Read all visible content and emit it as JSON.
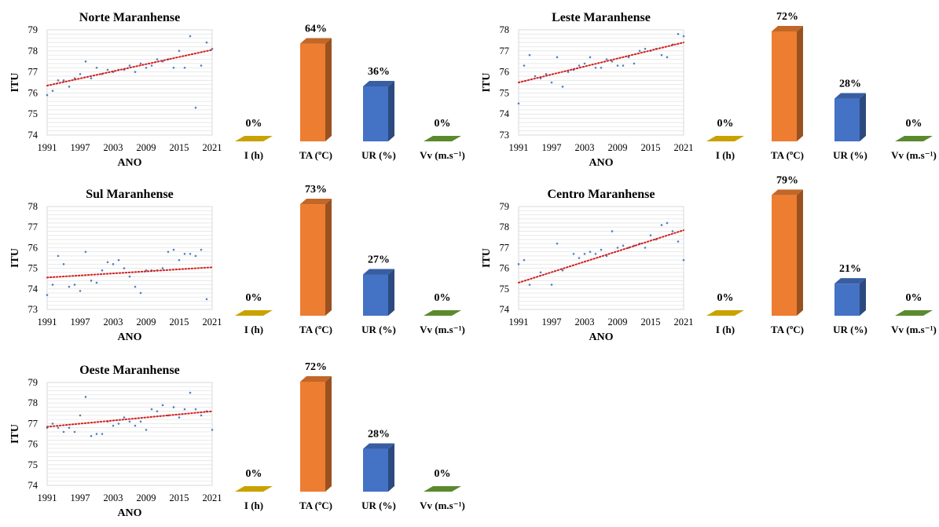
{
  "colors": {
    "I": "#C9A200",
    "TA": "#ED7D31",
    "UR": "#4472C4",
    "Vv": "#5B8A2E",
    "trend": "#D21F1F",
    "points": "#4F81BD",
    "grid": "#E4E4E4"
  },
  "chart_data": [
    {
      "type": "scatter",
      "title": "Norte Maranhense",
      "xlabel": "ANO",
      "ylabel": "ITU",
      "xlim": [
        1991,
        2021
      ],
      "ylim": [
        74,
        79
      ],
      "xticks": [
        "1991",
        "1997",
        "2003",
        "2009",
        "2015",
        "2021"
      ],
      "yticks": [
        "74",
        "75",
        "76",
        "77",
        "78",
        "79"
      ],
      "grid": true,
      "trendline": {
        "style": "dotted",
        "y_start": 76.35,
        "y_end": 78.05
      },
      "x": [
        1991,
        1992,
        1993,
        1994,
        1995,
        1996,
        1997,
        1998,
        1999,
        2000,
        2001,
        2002,
        2003,
        2004,
        2005,
        2006,
        2007,
        2008,
        2009,
        2010,
        2011,
        2012,
        2013,
        2014,
        2015,
        2016,
        2017,
        2018,
        2019,
        2020,
        2021
      ],
      "y": [
        75.9,
        76.1,
        76.6,
        76.6,
        76.3,
        76.7,
        76.9,
        77.5,
        76.7,
        77.2,
        76.9,
        77.1,
        77.0,
        77.1,
        77.1,
        77.3,
        77.0,
        77.4,
        77.2,
        77.3,
        77.6,
        77.5,
        77.6,
        77.2,
        78.0,
        77.2,
        78.7,
        75.3,
        77.3,
        78.4,
        78.1
      ]
    },
    {
      "type": "bar",
      "categories": [
        "I (h)",
        "TA (ºC)",
        "UR (%)",
        "Vv (m.s⁻¹)"
      ],
      "values": [
        0,
        64,
        36,
        0
      ],
      "data_labels": [
        "0%",
        "64%",
        "36%",
        "0%"
      ],
      "ylim": [
        0,
        64
      ]
    },
    {
      "type": "scatter",
      "title": "Leste Maranhense",
      "xlabel": "ANO",
      "ylabel": "ITU",
      "xlim": [
        1991,
        2021
      ],
      "ylim": [
        73,
        78
      ],
      "xticks": [
        "1991",
        "1997",
        "2003",
        "2009",
        "2015",
        "2021"
      ],
      "yticks": [
        "73",
        "74",
        "75",
        "76",
        "77",
        "78"
      ],
      "grid": true,
      "trendline": {
        "style": "dotted",
        "y_start": 75.5,
        "y_end": 77.4
      },
      "x": [
        1991,
        1992,
        1993,
        1994,
        1995,
        1996,
        1997,
        1998,
        1999,
        2000,
        2001,
        2002,
        2003,
        2004,
        2005,
        2006,
        2007,
        2008,
        2009,
        2010,
        2011,
        2012,
        2013,
        2014,
        2015,
        2016,
        2017,
        2018,
        2019,
        2020,
        2021
      ],
      "y": [
        74.5,
        76.3,
        76.8,
        75.8,
        75.7,
        75.9,
        75.5,
        76.7,
        75.3,
        76.0,
        76.1,
        76.3,
        76.4,
        76.7,
        76.2,
        76.2,
        76.6,
        76.5,
        76.3,
        76.3,
        76.7,
        76.4,
        77.0,
        77.1,
        77.0,
        77.1,
        76.8,
        76.7,
        77.3,
        77.8,
        77.7
      ]
    },
    {
      "type": "bar",
      "categories": [
        "I (h)",
        "TA (ºC)",
        "UR (%)",
        "Vv (m.s⁻¹)"
      ],
      "values": [
        0,
        72,
        28,
        0
      ],
      "data_labels": [
        "0%",
        "72%",
        "28%",
        "0%"
      ],
      "ylim": [
        0,
        72
      ]
    },
    {
      "type": "scatter",
      "title": "Sul Maranhense",
      "xlabel": "ANO",
      "ylabel": "ITU",
      "xlim": [
        1991,
        2021
      ],
      "ylim": [
        73,
        78
      ],
      "xticks": [
        "1991",
        "1997",
        "2003",
        "2009",
        "2015",
        "2021"
      ],
      "yticks": [
        "73",
        "74",
        "75",
        "76",
        "77",
        "78"
      ],
      "grid": true,
      "trendline": {
        "style": "dotted",
        "y_start": 74.55,
        "y_end": 75.05
      },
      "x": [
        1991,
        1992,
        1993,
        1994,
        1995,
        1996,
        1997,
        1998,
        1999,
        2000,
        2001,
        2002,
        2003,
        2004,
        2005,
        2006,
        2007,
        2008,
        2009,
        2010,
        2011,
        2012,
        2013,
        2014,
        2015,
        2016,
        2017,
        2018,
        2019,
        2020
      ],
      "y": [
        73.7,
        74.2,
        75.6,
        75.2,
        74.1,
        74.2,
        73.9,
        75.8,
        74.4,
        74.3,
        74.9,
        75.3,
        75.2,
        75.4,
        75.0,
        74.6,
        74.1,
        73.8,
        74.9,
        74.9,
        74.9,
        75.0,
        75.8,
        75.9,
        75.4,
        75.7,
        75.7,
        75.6,
        75.9,
        73.5
      ]
    },
    {
      "type": "bar",
      "categories": [
        "I (h)",
        "TA (ºC)",
        "UR (%)",
        "Vv (m.s⁻¹)"
      ],
      "values": [
        0,
        73,
        27,
        0
      ],
      "data_labels": [
        "0%",
        "73%",
        "27%",
        "0%"
      ],
      "ylim": [
        0,
        73
      ]
    },
    {
      "type": "scatter",
      "title": "Centro Maranhense",
      "xlabel": "ANO",
      "ylabel": "ITU",
      "xlim": [
        1991,
        2021
      ],
      "ylim": [
        74,
        79
      ],
      "xticks": [
        "1991",
        "1997",
        "2003",
        "2009",
        "2015",
        "2021"
      ],
      "yticks": [
        "74",
        "75",
        "76",
        "77",
        "78",
        "79"
      ],
      "grid": true,
      "trendline": {
        "style": "dotted",
        "y_start": 75.3,
        "y_end": 77.85
      },
      "x": [
        1991,
        1992,
        1993,
        1995,
        1997,
        1998,
        1999,
        2001,
        2002,
        2003,
        2004,
        2005,
        2006,
        2007,
        2008,
        2009,
        2010,
        2011,
        2012,
        2013,
        2014,
        2015,
        2016,
        2017,
        2018,
        2019,
        2020,
        2021
      ],
      "y": [
        76.2,
        76.4,
        75.2,
        75.8,
        75.2,
        77.2,
        75.9,
        76.7,
        76.5,
        76.7,
        76.8,
        76.7,
        76.9,
        76.6,
        77.8,
        77.0,
        77.1,
        77.0,
        77.1,
        77.2,
        77.0,
        77.6,
        77.4,
        78.1,
        78.2,
        77.8,
        77.3,
        76.4
      ]
    },
    {
      "type": "bar",
      "categories": [
        "I (h)",
        "TA (ºC)",
        "UR (%)",
        "Vv (m.s⁻¹)"
      ],
      "values": [
        0,
        79,
        21,
        0
      ],
      "data_labels": [
        "0%",
        "79%",
        "21%",
        "0%"
      ],
      "ylim": [
        0,
        79
      ]
    },
    {
      "type": "scatter",
      "title": "Oeste Maranhense",
      "xlabel": "ANO",
      "ylabel": "ITU",
      "xlim": [
        1991,
        2021
      ],
      "ylim": [
        74,
        79
      ],
      "xticks": [
        "1991",
        "1997",
        "2003",
        "2009",
        "2015",
        "2021"
      ],
      "yticks": [
        "74",
        "75",
        "76",
        "77",
        "78",
        "79"
      ],
      "grid": true,
      "trendline": {
        "style": "dotted",
        "y_start": 76.85,
        "y_end": 77.6
      },
      "x": [
        1991,
        1992,
        1993,
        1994,
        1995,
        1996,
        1997,
        1998,
        1999,
        2000,
        2001,
        2002,
        2003,
        2004,
        2005,
        2006,
        2007,
        2008,
        2009,
        2010,
        2011,
        2012,
        2013,
        2014,
        2015,
        2016,
        2017,
        2018,
        2019,
        2020,
        2021
      ],
      "y": [
        76.8,
        77.0,
        76.8,
        76.6,
        76.8,
        76.6,
        77.4,
        78.3,
        76.4,
        76.5,
        76.5,
        77.1,
        76.9,
        77.0,
        77.3,
        77.1,
        76.9,
        77.1,
        76.7,
        77.7,
        77.6,
        77.9,
        77.4,
        77.8,
        77.3,
        77.7,
        78.5,
        77.7,
        77.4,
        77.6,
        76.7
      ]
    },
    {
      "type": "bar",
      "categories": [
        "I (h)",
        "TA (ºC)",
        "UR (%)",
        "Vv (m.s⁻¹)"
      ],
      "values": [
        0,
        72,
        28,
        0
      ],
      "data_labels": [
        "0%",
        "72%",
        "28%",
        "0%"
      ],
      "ylim": [
        0,
        72
      ]
    }
  ]
}
